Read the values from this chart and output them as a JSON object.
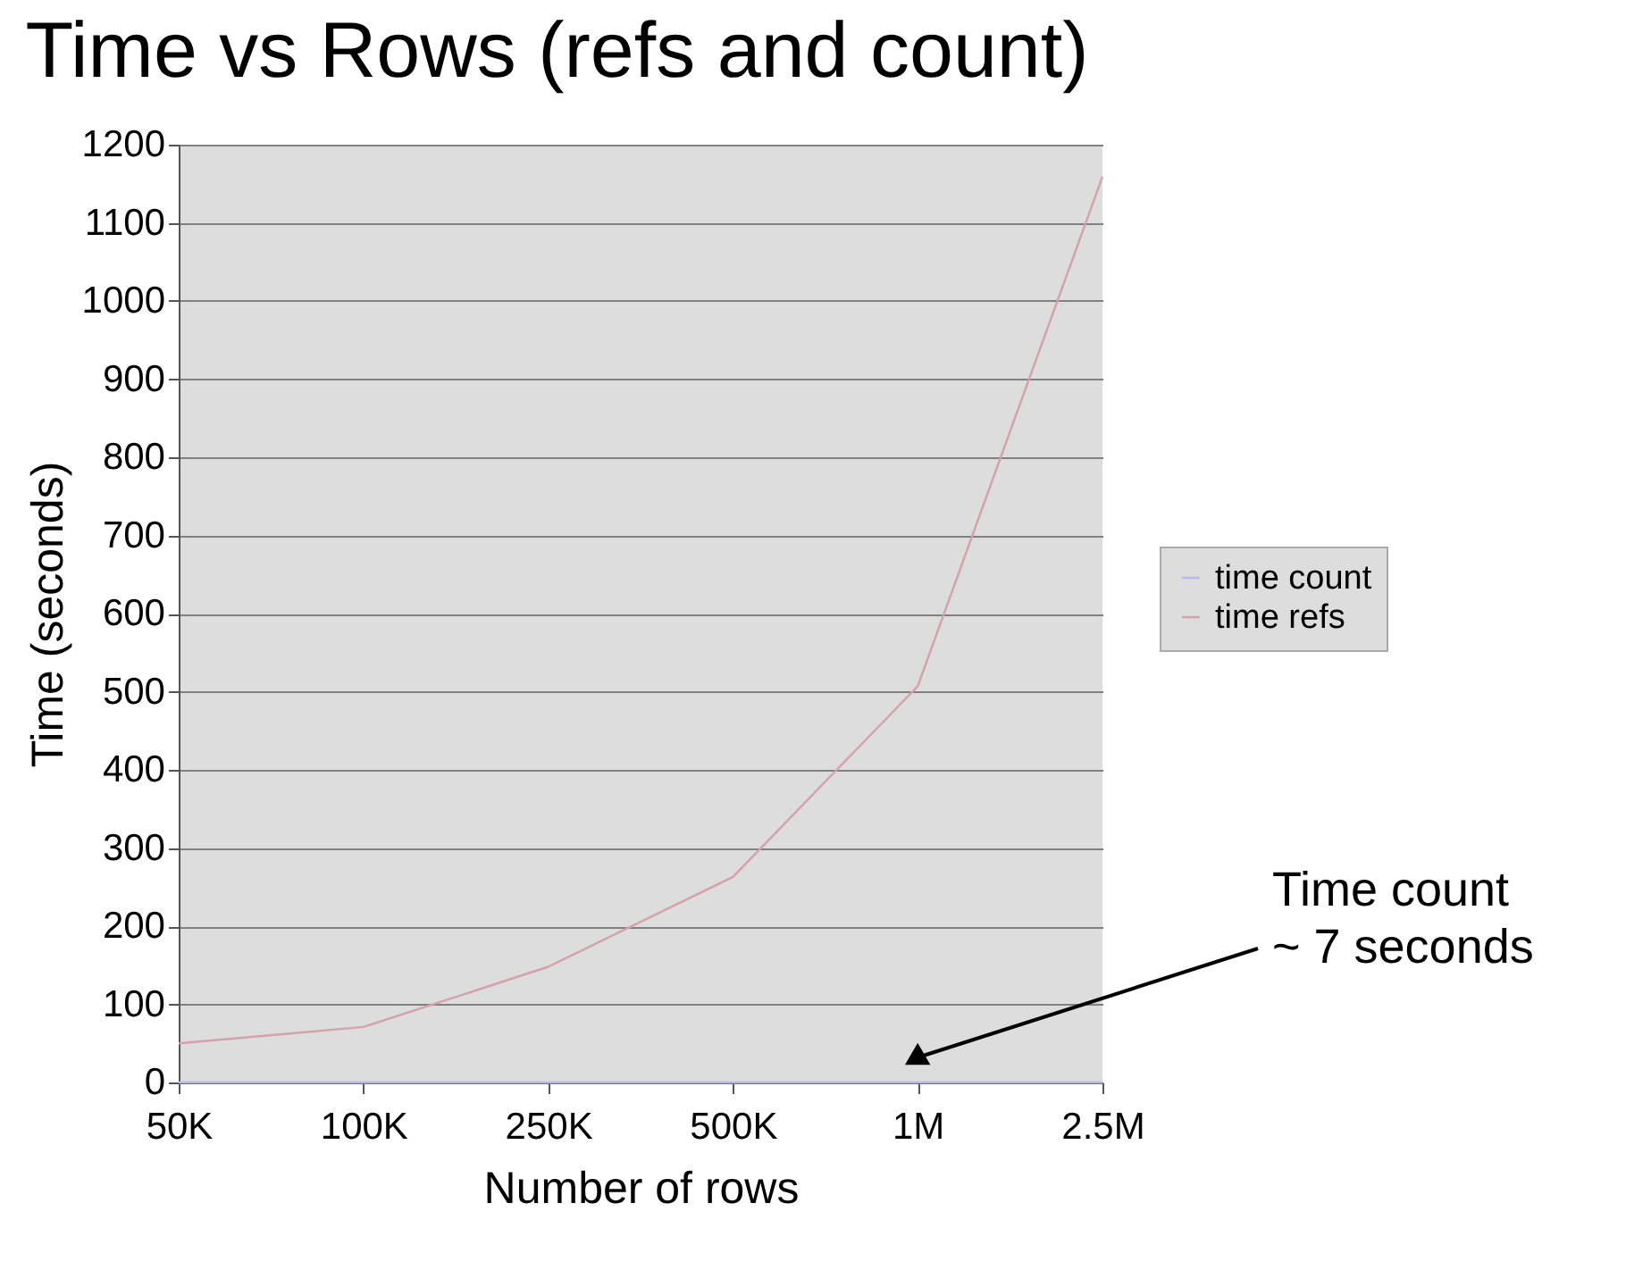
{
  "chart_data": {
    "type": "line",
    "title": "Time vs Rows (refs and count)",
    "xlabel": "Number of rows",
    "ylabel": "Time (seconds)",
    "categories": [
      "50K",
      "100K",
      "250K",
      "500K",
      "1M",
      "2.5M"
    ],
    "series": [
      {
        "name": "time count",
        "color": "#b8b8f0",
        "values": [
          0,
          0,
          0,
          0,
          0,
          0
        ]
      },
      {
        "name": "time refs",
        "color": "#d4a0ac",
        "values": [
          50,
          71,
          148,
          263,
          507,
          1159
        ]
      }
    ],
    "ylim": [
      0,
      1200
    ],
    "yticks": [
      0,
      100,
      200,
      300,
      400,
      500,
      600,
      700,
      800,
      900,
      1000,
      1100,
      1200
    ],
    "grid": "y",
    "legend": "right",
    "marker": "none",
    "annotations": [
      "Time count\n~ 7 seconds"
    ]
  }
}
